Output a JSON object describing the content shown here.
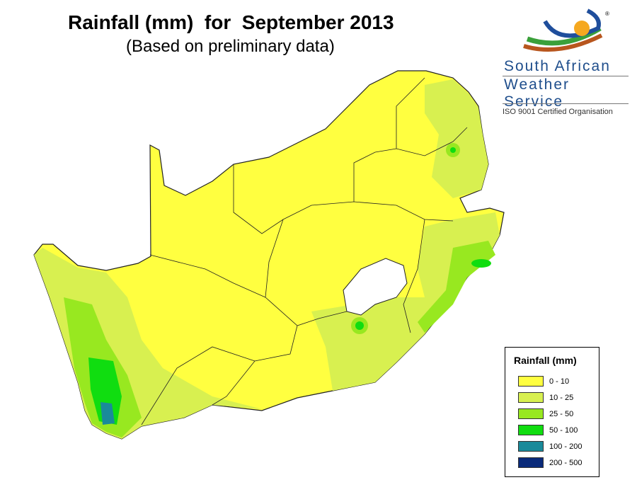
{
  "title": "Rainfall (mm)  for  September 2013",
  "subtitle": "(Based on preliminary data)",
  "logo": {
    "line1": "South African",
    "line2": "Weather Service",
    "iso": "ISO 9001 Certified Organisation",
    "registered": "®"
  },
  "legend": {
    "title": "Rainfall (mm)",
    "items": [
      {
        "label": "0 - 10",
        "color": "#ffff40"
      },
      {
        "label": "10 - 25",
        "color": "#d8f050"
      },
      {
        "label": "25 - 50",
        "color": "#98e820"
      },
      {
        "label": "50 - 100",
        "color": "#10dd10"
      },
      {
        "label": "100 - 200",
        "color": "#1a8a9a"
      },
      {
        "label": "200 - 500",
        "color": "#0a2a7a"
      }
    ]
  }
}
